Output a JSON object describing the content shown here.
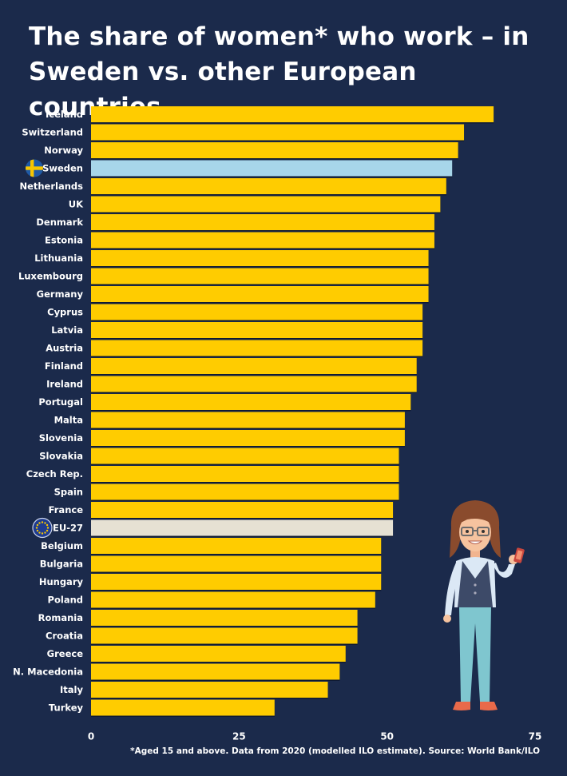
{
  "title_line1": "The share of women* who work – in",
  "title_line2": "Sweden vs. other European countries",
  "source_note": "*Aged 15 and above. Data from 2020 (modelled ILO estimate). Source: World Bank/ILO",
  "colors": {
    "background": "#1b2a4b",
    "bar": "#ffcc00",
    "highlight_sweden": "#a7d6ea",
    "highlight_eu": "#e6e1d3"
  },
  "icons": {
    "sweden": "sweden-flag-icon",
    "eu": "eu-flag-icon"
  },
  "chart_data": {
    "type": "bar",
    "orientation": "horizontal",
    "categories": [
      "Iceland",
      "Switzerland",
      "Norway",
      "Sweden",
      "Netherlands",
      "UK",
      "Denmark",
      "Estonia",
      "Lithuania",
      "Luxembourg",
      "Germany",
      "Cyprus",
      "Latvia",
      "Austria",
      "Finland",
      "Ireland",
      "Portugal",
      "Malta",
      "Slovenia",
      "Slovakia",
      "Czech Rep.",
      "Spain",
      "France",
      "EU-27",
      "Belgium",
      "Bulgaria",
      "Hungary",
      "Poland",
      "Romania",
      "Croatia",
      "Greece",
      "N. Macedonia",
      "Italy",
      "Turkey"
    ],
    "values": [
      68,
      63,
      62,
      61,
      60,
      59,
      58,
      58,
      57,
      57,
      57,
      56,
      56,
      56,
      55,
      55,
      54,
      53,
      53,
      52,
      52,
      52,
      51,
      51,
      49,
      49,
      49,
      48,
      45,
      45,
      43,
      42,
      40,
      31
    ],
    "highlight": {
      "Sweden": "sweden",
      "EU-27": "eu"
    },
    "xlim": [
      0,
      75
    ],
    "xticks": [
      0,
      25,
      50,
      75
    ],
    "grid": false
  }
}
